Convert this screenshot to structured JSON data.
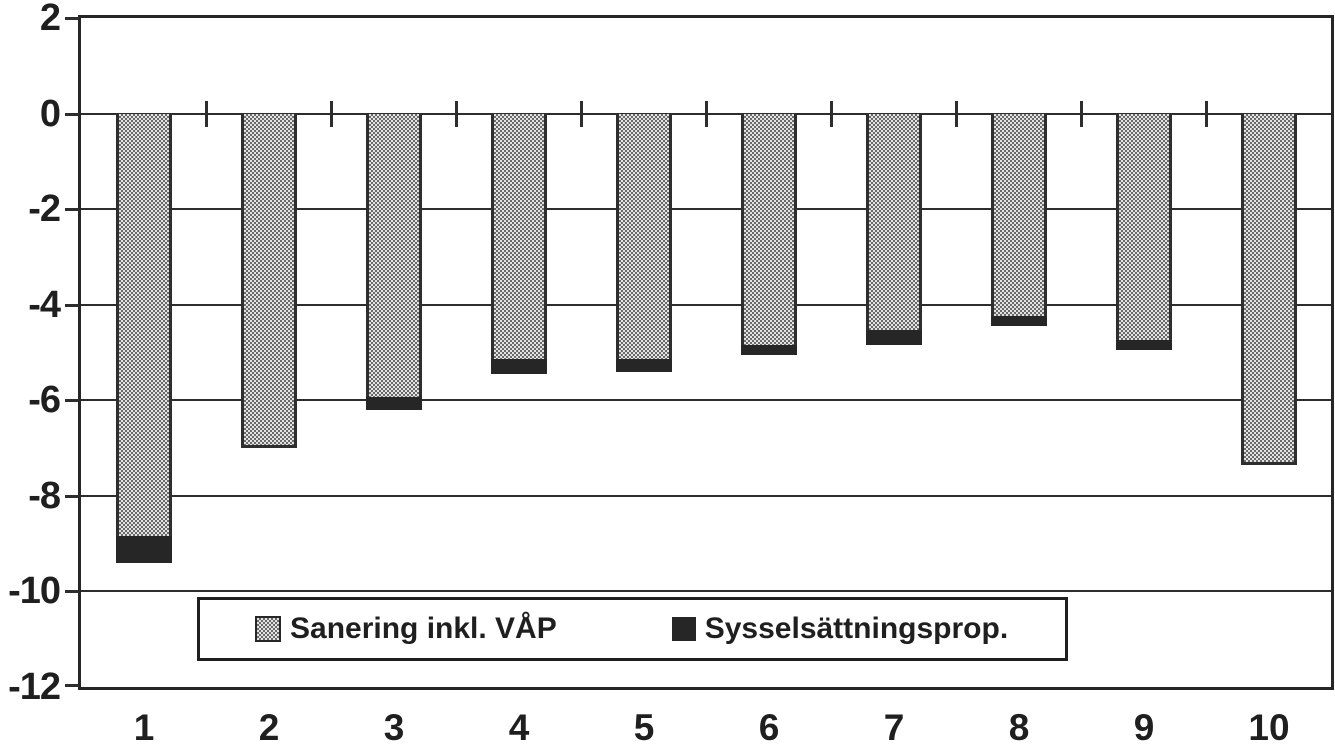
{
  "chart_data": {
    "type": "bar",
    "orientation": "vertical",
    "stacked": true,
    "title": "",
    "xlabel": "",
    "ylabel": "",
    "categories": [
      "1",
      "2",
      "3",
      "4",
      "5",
      "6",
      "7",
      "8",
      "9",
      "10"
    ],
    "series": [
      {
        "name": "Sanering inkl. VÅP",
        "swatch": "halftone-gray",
        "values": [
          -8.9,
          -7.0,
          -6.0,
          -5.2,
          -5.2,
          -4.9,
          -4.6,
          -4.3,
          -4.8,
          -7.35
        ]
      },
      {
        "name": "Sysselsättningsprop.",
        "swatch": "black",
        "values": [
          -0.5,
          0,
          -0.2,
          -0.25,
          -0.2,
          -0.15,
          -0.25,
          -0.15,
          -0.15,
          0
        ]
      }
    ],
    "stack_totals": [
      -9.4,
      -7.0,
      -6.2,
      -5.45,
      -5.4,
      -5.05,
      -4.85,
      -4.45,
      -4.95,
      -7.35
    ],
    "ylim": [
      -12,
      2
    ],
    "yticks": [
      2,
      0,
      -2,
      -4,
      -6,
      -8,
      -10,
      -12
    ],
    "grid": true,
    "legend_position": "inside-bottom"
  },
  "legend": {
    "items": [
      {
        "label": "Sanering inkl. VÅP",
        "swatch": "halftone-gray"
      },
      {
        "label": "Sysselsättningsprop.",
        "swatch": "black"
      }
    ]
  },
  "colors": {
    "ink": "#1f1f1f",
    "grid_line": "#2d2d2d",
    "bar_border": "#2e2e2e",
    "bar_halftone_dark": "#6a6a6a",
    "bar_halftone_light": "#e3e3e3",
    "black_segment": "#262626",
    "background": "#ffffff"
  }
}
